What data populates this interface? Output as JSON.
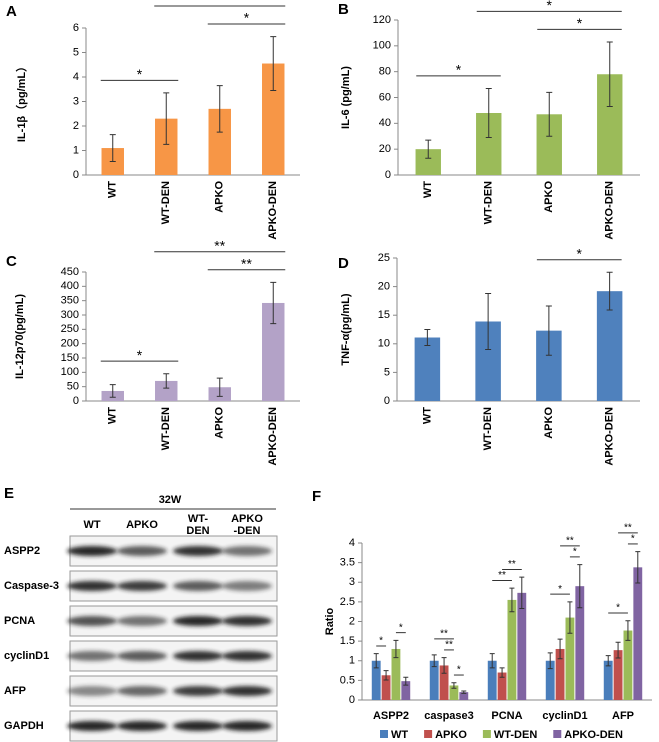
{
  "chart_data": [
    {
      "type": "bar",
      "panel": "A",
      "ylabel": "IL-1β（pg/mL）",
      "categories": [
        "WT",
        "WT-DEN",
        "APKO",
        "APKO-DEN"
      ],
      "values": [
        1.1,
        2.3,
        2.7,
        4.55
      ],
      "errors": [
        0.55,
        1.05,
        0.95,
        1.1
      ],
      "color": "#f79646",
      "ylim": [
        0,
        6
      ],
      "yticks": [
        0,
        1,
        2,
        3,
        4,
        5,
        6
      ],
      "annotations": [
        {
          "from": 0,
          "to": 1,
          "label": "*"
        },
        {
          "from": 2,
          "to": 3,
          "label": "*"
        },
        {
          "from": 1,
          "to": 3,
          "label": "*"
        }
      ]
    },
    {
      "type": "bar",
      "panel": "B",
      "ylabel": "IL-6 (pg/mL)",
      "categories": [
        "WT",
        "WT-DEN",
        "APKO",
        "APKO-DEN"
      ],
      "values": [
        20,
        48,
        47,
        78
      ],
      "errors": [
        7,
        19,
        17,
        25
      ],
      "color": "#9bbb59",
      "ylim": [
        0,
        120
      ],
      "yticks": [
        0,
        20,
        40,
        60,
        80,
        100,
        120
      ],
      "annotations": [
        {
          "from": 0,
          "to": 1,
          "label": "*"
        },
        {
          "from": 2,
          "to": 3,
          "label": "*"
        },
        {
          "from": 1,
          "to": 3,
          "label": "*"
        }
      ]
    },
    {
      "type": "bar",
      "panel": "C",
      "ylabel": "IL-12p70(pg/mL)",
      "categories": [
        "WT",
        "WT-DEN",
        "APKO",
        "APKO-DEN"
      ],
      "values": [
        35,
        70,
        48,
        342
      ],
      "errors": [
        22,
        25,
        32,
        72
      ],
      "color": "#b3a2c7",
      "ylim": [
        0,
        450
      ],
      "yticks": [
        0,
        50,
        100,
        150,
        200,
        250,
        300,
        350,
        400,
        450
      ],
      "annotations": [
        {
          "from": 0,
          "to": 1,
          "label": "*"
        },
        {
          "from": 2,
          "to": 3,
          "label": "**"
        },
        {
          "from": 1,
          "to": 3,
          "label": "**"
        }
      ]
    },
    {
      "type": "bar",
      "panel": "D",
      "ylabel": "TNF-α(pg/mL)",
      "categories": [
        "WT",
        "WT-DEN",
        "APKO",
        "APKO-DEN"
      ],
      "values": [
        11.1,
        13.9,
        12.3,
        19.2
      ],
      "errors": [
        1.4,
        4.9,
        4.3,
        3.3
      ],
      "color": "#4f81bd",
      "ylim": [
        0,
        25
      ],
      "yticks": [
        0,
        5,
        10,
        15,
        20,
        25
      ],
      "annotations": [
        {
          "from": 2,
          "to": 3,
          "label": "*"
        }
      ]
    },
    {
      "type": "grouped_bar",
      "panel": "F",
      "ylabel": "Ratio",
      "categories": [
        "ASPP2",
        "caspase3",
        "PCNA",
        "cyclinD1",
        "AFP"
      ],
      "ylim": [
        0,
        4
      ],
      "yticks": [
        0,
        0.5,
        1,
        1.5,
        2,
        2.5,
        3,
        3.5,
        4
      ],
      "series": [
        {
          "name": "WT",
          "color": "#4a7ebb",
          "values": [
            1,
            1,
            1,
            1,
            1
          ],
          "errors": [
            0.18,
            0.15,
            0.18,
            0.2,
            0.13
          ]
        },
        {
          "name": "APKO",
          "color": "#c0504d",
          "values": [
            0.63,
            0.88,
            0.7,
            1.3,
            1.27
          ],
          "errors": [
            0.12,
            0.2,
            0.12,
            0.25,
            0.2
          ]
        },
        {
          "name": "WT-DEN",
          "color": "#9bbb59",
          "values": [
            1.3,
            0.37,
            2.55,
            2.1,
            1.77
          ],
          "errors": [
            0.22,
            0.07,
            0.3,
            0.4,
            0.25
          ]
        },
        {
          "name": "APKO-DEN",
          "color": "#8064a2",
          "values": [
            0.48,
            0.2,
            2.73,
            2.9,
            3.38
          ],
          "errors": [
            0.1,
            0.03,
            0.4,
            0.55,
            0.4
          ]
        }
      ],
      "annotations": [
        {
          "category": 0,
          "from": 0,
          "to": 1,
          "label": "*"
        },
        {
          "category": 0,
          "from": 2,
          "to": 3,
          "label": "*"
        },
        {
          "category": 1,
          "from": 2,
          "to": 3,
          "label": "*"
        },
        {
          "category": 1,
          "from": 1,
          "to": 2,
          "label": "**"
        },
        {
          "category": 1,
          "from": 0,
          "to": 2,
          "label": "**"
        },
        {
          "category": 2,
          "from": 0,
          "to": 2,
          "label": "**"
        },
        {
          "category": 2,
          "from": 1,
          "to": 3,
          "label": "**"
        },
        {
          "category": 3,
          "from": 0,
          "to": 2,
          "label": "*"
        },
        {
          "category": 3,
          "from": 2,
          "to": 3,
          "label": "*"
        },
        {
          "category": 3,
          "from": 1,
          "to": 3,
          "label": "**"
        },
        {
          "category": 4,
          "from": 0,
          "to": 2,
          "label": "*"
        },
        {
          "category": 4,
          "from": 2,
          "to": 3,
          "label": "*"
        },
        {
          "category": 4,
          "from": 1,
          "to": 3,
          "label": "**"
        }
      ]
    }
  ],
  "blot": {
    "panel": "E",
    "timepoint": "32W",
    "columns": [
      [
        "WT"
      ],
      [
        "APKO"
      ],
      [
        "WT-",
        "DEN"
      ],
      [
        "APKO",
        "-DEN"
      ]
    ],
    "rows": [
      "ASPP2",
      "Caspase-3",
      "PCNA",
      "cyclinD1",
      "AFP",
      "GAPDH"
    ]
  }
}
